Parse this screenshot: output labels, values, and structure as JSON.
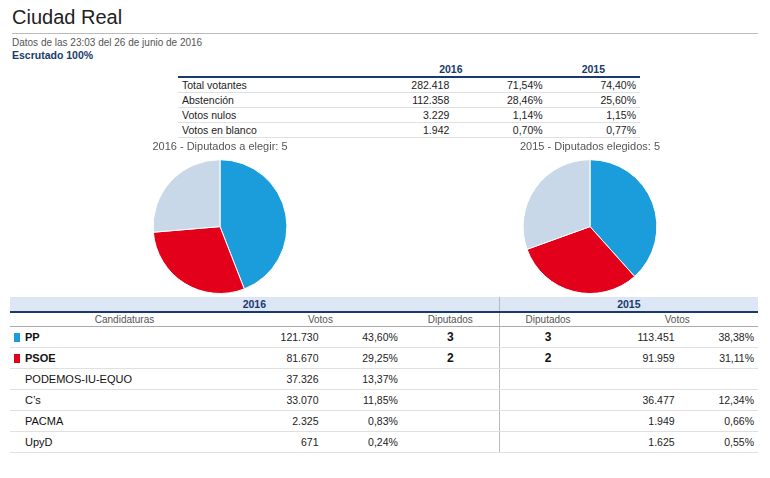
{
  "title": "Ciudad Real",
  "subtitle": [
    "Datos de las 23:03 del 26 de junio de 2016",
    "Escrutado 100%"
  ],
  "tables": [
    {
      "header": [
        null,
        "2016",
        null,
        "2015"
      ],
      "rows": [
        [
          "Total votantes",
          "282.418",
          "71,54%",
          "74,40%"
        ],
        [
          "Abstención",
          "112.358",
          "28,46%",
          "25,60%"
        ],
        [
          "Votos nulos",
          "3.229",
          "1,14%",
          "1,15%"
        ],
        [
          "Votos en blanco",
          "1.942",
          "0,70%",
          "0,77%"
        ]
      ]
    },
    {
      "header": [
        "2016",
        null,
        null,
        null,
        "2015",
        null,
        null
      ],
      "columns": [
        "Candidaturas",
        "Votos",
        null,
        "Diputados",
        "Diputados",
        "Votos",
        null
      ],
      "rows": [
        [
          "PP",
          "121.730",
          "43,60%",
          "3",
          "3",
          "113.451",
          "38,38%"
        ],
        [
          "PSOE",
          "81.670",
          "29,25%",
          "2",
          "2",
          "91.959",
          "31,11%"
        ],
        [
          "PODEMOS-IU-EQUO",
          "37.326",
          "13,37%",
          null,
          null,
          null,
          null
        ],
        [
          "C’s",
          "33.070",
          "11,85%",
          null,
          null,
          "36.477",
          "12,34%"
        ],
        [
          "PACMA",
          "2.325",
          "0,83%",
          null,
          null,
          "1.949",
          "0,66%"
        ],
        [
          "UpyD",
          "671",
          "0,24%",
          null,
          null,
          "1.625",
          "0,55%"
        ]
      ],
      "colors": [
        "#1a9dda",
        "#e3001b",
        null,
        null,
        null,
        null
      ]
    }
  ],
  "chart_data": [
    {
      "type": "pie",
      "title": "2016 - Diputados a elegir: 5",
      "categories": [
        null,
        null,
        null
      ],
      "values": [
        43.6,
        29.25,
        26.05
      ],
      "colors": [
        "#1a9dda",
        "#e3001b",
        "#c8d8e8"
      ],
      "legend": false
    },
    {
      "type": "pie",
      "title": "2015 - Diputados elegidos: 5",
      "categories": [
        null,
        null,
        null
      ],
      "values": [
        38.38,
        31.11,
        30.51
      ],
      "colors": [
        "#1a9dda",
        "#e3001b",
        "#c8d8e8"
      ],
      "legend": false
    }
  ]
}
